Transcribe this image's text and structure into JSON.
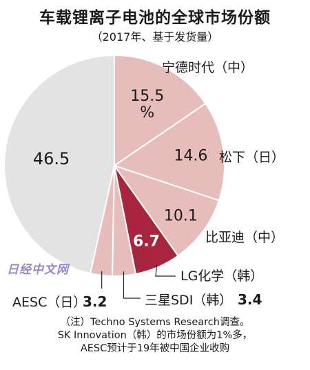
{
  "title": "车载锂离子电池的全球市场份额",
  "subtitle": "（2017年、基于发货量）",
  "watermark": "日经中文网",
  "notes": [
    "（注）Techno Systems Research调查。",
    "SK Innovation（韩）的市场份额为1%多，",
    "AESC预计于19年被中国企业收购"
  ],
  "chart_data": {
    "type": "pie",
    "title": "车载锂离子电池的全球市场份额",
    "subtitle": "（2017年、基于发货量）",
    "slices": [
      {
        "label": "宁德时代（中）",
        "value": 15.5,
        "value_text_1": "15.5",
        "value_text_2": "%",
        "color": "#e7bdbc"
      },
      {
        "label": "松下（日）",
        "value": 14.6,
        "value_text": "14.6",
        "color": "#e7bdbc"
      },
      {
        "label": "比亚迪（中）",
        "value": 10.1,
        "value_text": "10.1",
        "color": "#e7bdbc"
      },
      {
        "label": "LG化学（韩）",
        "value": 6.7,
        "value_text": "6.7",
        "color": "#a8243f"
      },
      {
        "label": "三星SDI（韩）",
        "value": 3.4,
        "value_text": "3.4",
        "color": "#e7bdbc"
      },
      {
        "label": "AESC（日）",
        "value": 3.2,
        "value_text": "3.2",
        "color": "#e7bdbc"
      },
      {
        "label": "",
        "value": 46.5,
        "value_text": "46.5",
        "color": "#e3e3e3"
      }
    ]
  }
}
